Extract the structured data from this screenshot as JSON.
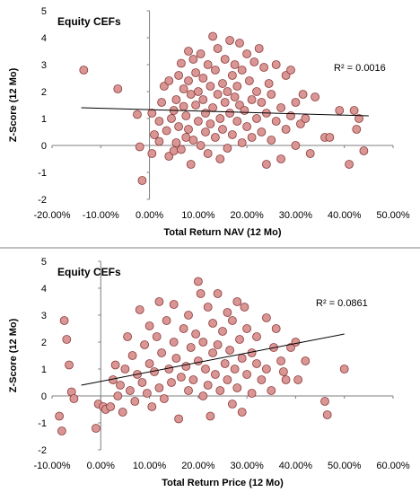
{
  "chart_data": [
    {
      "type": "scatter",
      "title": "Equity CEFs",
      "xlabel": "Total Return NAV (12 Mo)",
      "ylabel": "Z-Score (12 Mo)",
      "xlim": [
        -0.2,
        0.5
      ],
      "ylim": [
        -2,
        5
      ],
      "x_tick_labels": [
        "-20.00%",
        "-10.00%",
        "0.00%",
        "10.00%",
        "20.00%",
        "30.00%",
        "40.00%",
        "50.00%"
      ],
      "y_tick_labels": [
        "-2",
        "-1",
        "0",
        "1",
        "2",
        "3",
        "4",
        "5"
      ],
      "grid": false,
      "r_squared_label": "R² = 0.0016",
      "trendline": {
        "x": [
          -0.14,
          0.45
        ],
        "y": [
          1.4,
          1.1
        ]
      },
      "points": [
        {
          "x": -0.135,
          "y": 2.8
        },
        {
          "x": -0.065,
          "y": 2.1
        },
        {
          "x": -0.025,
          "y": 1.15
        },
        {
          "x": -0.02,
          "y": -0.05
        },
        {
          "x": -0.015,
          "y": -1.3
        },
        {
          "x": 0.005,
          "y": 1.2
        },
        {
          "x": 0.005,
          "y": -0.3
        },
        {
          "x": 0.01,
          "y": 0.4
        },
        {
          "x": 0.02,
          "y": 0.15
        },
        {
          "x": 0.02,
          "y": 0.9
        },
        {
          "x": 0.025,
          "y": 1.6
        },
        {
          "x": 0.03,
          "y": 2.2
        },
        {
          "x": 0.035,
          "y": 0.55
        },
        {
          "x": 0.04,
          "y": -0.4
        },
        {
          "x": 0.04,
          "y": 2.4
        },
        {
          "x": 0.045,
          "y": 1.0
        },
        {
          "x": 0.05,
          "y": 1.3
        },
        {
          "x": 0.05,
          "y": -0.2
        },
        {
          "x": 0.055,
          "y": 0.1
        },
        {
          "x": 0.055,
          "y": 1.7
        },
        {
          "x": 0.06,
          "y": 2.6
        },
        {
          "x": 0.06,
          "y": 0.7
        },
        {
          "x": 0.065,
          "y": 3.05
        },
        {
          "x": 0.065,
          "y": -0.15
        },
        {
          "x": 0.07,
          "y": 1.45
        },
        {
          "x": 0.07,
          "y": 2.1
        },
        {
          "x": 0.075,
          "y": 0.3
        },
        {
          "x": 0.075,
          "y": 1.1
        },
        {
          "x": 0.08,
          "y": 3.5
        },
        {
          "x": 0.08,
          "y": 0.6
        },
        {
          "x": 0.08,
          "y": 2.4
        },
        {
          "x": 0.085,
          "y": 1.9
        },
        {
          "x": 0.085,
          "y": -0.7
        },
        {
          "x": 0.09,
          "y": 3.2
        },
        {
          "x": 0.09,
          "y": 0.2
        },
        {
          "x": 0.095,
          "y": 1.5
        },
        {
          "x": 0.095,
          "y": 2.7
        },
        {
          "x": 0.1,
          "y": 0.9
        },
        {
          "x": 0.1,
          "y": 2.0
        },
        {
          "x": 0.105,
          "y": 3.4
        },
        {
          "x": 0.105,
          "y": 0.0
        },
        {
          "x": 0.11,
          "y": 1.7
        },
        {
          "x": 0.11,
          "y": 2.5
        },
        {
          "x": 0.115,
          "y": 0.5
        },
        {
          "x": 0.115,
          "y": 1.2
        },
        {
          "x": 0.12,
          "y": 3.0
        },
        {
          "x": 0.12,
          "y": -0.3
        },
        {
          "x": 0.125,
          "y": 2.2
        },
        {
          "x": 0.125,
          "y": 0.8
        },
        {
          "x": 0.13,
          "y": 4.05
        },
        {
          "x": 0.13,
          "y": 1.4
        },
        {
          "x": 0.135,
          "y": 2.8
        },
        {
          "x": 0.135,
          "y": 0.3
        },
        {
          "x": 0.14,
          "y": 1.9
        },
        {
          "x": 0.14,
          "y": 3.6
        },
        {
          "x": 0.145,
          "y": 1.0
        },
        {
          "x": 0.145,
          "y": -0.5
        },
        {
          "x": 0.15,
          "y": 2.3
        },
        {
          "x": 0.15,
          "y": 0.6
        },
        {
          "x": 0.155,
          "y": 3.2
        },
        {
          "x": 0.155,
          "y": 1.6
        },
        {
          "x": 0.16,
          "y": 2.0
        },
        {
          "x": 0.16,
          "y": -0.1
        },
        {
          "x": 0.165,
          "y": 3.9
        },
        {
          "x": 0.165,
          "y": 1.2
        },
        {
          "x": 0.17,
          "y": 2.6
        },
        {
          "x": 0.17,
          "y": 0.4
        },
        {
          "x": 0.175,
          "y": 1.8
        },
        {
          "x": 0.175,
          "y": 3.0
        },
        {
          "x": 0.18,
          "y": 0.9
        },
        {
          "x": 0.18,
          "y": 2.2
        },
        {
          "x": 0.185,
          "y": 1.5
        },
        {
          "x": 0.185,
          "y": 3.8
        },
        {
          "x": 0.19,
          "y": 0.1
        },
        {
          "x": 0.19,
          "y": 2.8
        },
        {
          "x": 0.195,
          "y": 1.3
        },
        {
          "x": 0.2,
          "y": 3.4
        },
        {
          "x": 0.2,
          "y": 0.7
        },
        {
          "x": 0.205,
          "y": 2.4
        },
        {
          "x": 0.21,
          "y": 1.7
        },
        {
          "x": 0.21,
          "y": 0.3
        },
        {
          "x": 0.215,
          "y": 3.1
        },
        {
          "x": 0.22,
          "y": 1.0
        },
        {
          "x": 0.22,
          "y": 2.0
        },
        {
          "x": 0.225,
          "y": 3.6
        },
        {
          "x": 0.23,
          "y": 0.5
        },
        {
          "x": 0.23,
          "y": 1.6
        },
        {
          "x": 0.235,
          "y": 2.9
        },
        {
          "x": 0.24,
          "y": -0.7
        },
        {
          "x": 0.24,
          "y": 1.2
        },
        {
          "x": 0.245,
          "y": 2.3
        },
        {
          "x": 0.25,
          "y": 0.2
        },
        {
          "x": 0.25,
          "y": 1.9
        },
        {
          "x": 0.26,
          "y": 0.9
        },
        {
          "x": 0.26,
          "y": 3.0
        },
        {
          "x": 0.27,
          "y": 1.4
        },
        {
          "x": 0.27,
          "y": -0.5
        },
        {
          "x": 0.28,
          "y": 2.6
        },
        {
          "x": 0.28,
          "y": 0.6
        },
        {
          "x": 0.29,
          "y": 1.1
        },
        {
          "x": 0.29,
          "y": 2.8
        },
        {
          "x": 0.3,
          "y": 0.0
        },
        {
          "x": 0.3,
          "y": 1.6
        },
        {
          "x": 0.31,
          "y": 0.8
        },
        {
          "x": 0.315,
          "y": 1.9
        },
        {
          "x": 0.32,
          "y": 1.0
        },
        {
          "x": 0.33,
          "y": -0.3
        },
        {
          "x": 0.34,
          "y": 1.8
        },
        {
          "x": 0.36,
          "y": 0.3
        },
        {
          "x": 0.37,
          "y": 0.3
        },
        {
          "x": 0.39,
          "y": 1.3
        },
        {
          "x": 0.41,
          "y": -0.7
        },
        {
          "x": 0.42,
          "y": 1.3
        },
        {
          "x": 0.425,
          "y": 0.6
        },
        {
          "x": 0.43,
          "y": 1.0
        },
        {
          "x": 0.44,
          "y": -0.2
        }
      ]
    },
    {
      "type": "scatter",
      "title": "Equity CEFs",
      "xlabel": "Total Return Price (12 Mo)",
      "ylabel": "Z-Score (12 Mo)",
      "xlim": [
        -0.1,
        0.6
      ],
      "ylim": [
        -2,
        5
      ],
      "x_tick_labels": [
        "-10.00%",
        "0.00%",
        "10.00%",
        "20.00%",
        "30.00%",
        "40.00%",
        "50.00%",
        "60.00%"
      ],
      "y_tick_labels": [
        "-2",
        "-1",
        "0",
        "1",
        "2",
        "3",
        "4",
        "5"
      ],
      "grid": false,
      "r_squared_label": "R² = 0.0861",
      "trendline": {
        "x": [
          -0.04,
          0.5
        ],
        "y": [
          0.4,
          2.3
        ]
      },
      "points": [
        {
          "x": -0.085,
          "y": -0.75
        },
        {
          "x": -0.08,
          "y": -1.3
        },
        {
          "x": -0.075,
          "y": 2.8
        },
        {
          "x": -0.07,
          "y": 2.1
        },
        {
          "x": -0.065,
          "y": 1.15
        },
        {
          "x": -0.06,
          "y": 0.15
        },
        {
          "x": -0.055,
          "y": -0.1
        },
        {
          "x": -0.01,
          "y": -1.2
        },
        {
          "x": -0.005,
          "y": -0.3
        },
        {
          "x": 0.005,
          "y": -0.4
        },
        {
          "x": 0.01,
          "y": -0.5
        },
        {
          "x": 0.02,
          "y": -0.4
        },
        {
          "x": 0.025,
          "y": 0.6
        },
        {
          "x": 0.03,
          "y": 1.15
        },
        {
          "x": 0.035,
          "y": 0.0
        },
        {
          "x": 0.04,
          "y": 0.4
        },
        {
          "x": 0.045,
          "y": -0.6
        },
        {
          "x": 0.05,
          "y": 1.0
        },
        {
          "x": 0.055,
          "y": 2.2
        },
        {
          "x": 0.06,
          "y": 0.2
        },
        {
          "x": 0.065,
          "y": 1.5
        },
        {
          "x": 0.07,
          "y": -0.2
        },
        {
          "x": 0.075,
          "y": 0.8
        },
        {
          "x": 0.08,
          "y": 3.2
        },
        {
          "x": 0.085,
          "y": 0.5
        },
        {
          "x": 0.09,
          "y": 1.9
        },
        {
          "x": 0.095,
          "y": 0.1
        },
        {
          "x": 0.1,
          "y": 2.6
        },
        {
          "x": 0.1,
          "y": 1.2
        },
        {
          "x": 0.105,
          "y": -0.4
        },
        {
          "x": 0.11,
          "y": 0.9
        },
        {
          "x": 0.115,
          "y": 2.2
        },
        {
          "x": 0.12,
          "y": 3.5
        },
        {
          "x": 0.12,
          "y": 0.3
        },
        {
          "x": 0.125,
          "y": 1.6
        },
        {
          "x": 0.13,
          "y": -0.1
        },
        {
          "x": 0.135,
          "y": 2.8
        },
        {
          "x": 0.14,
          "y": 1.0
        },
        {
          "x": 0.145,
          "y": 0.5
        },
        {
          "x": 0.15,
          "y": 2.0
        },
        {
          "x": 0.15,
          "y": 3.4
        },
        {
          "x": 0.155,
          "y": 1.4
        },
        {
          "x": 0.16,
          "y": -0.85
        },
        {
          "x": 0.165,
          "y": 0.7
        },
        {
          "x": 0.17,
          "y": 2.5
        },
        {
          "x": 0.175,
          "y": 1.1
        },
        {
          "x": 0.18,
          "y": 0.2
        },
        {
          "x": 0.18,
          "y": 3.0
        },
        {
          "x": 0.185,
          "y": 1.8
        },
        {
          "x": 0.19,
          "y": 0.6
        },
        {
          "x": 0.195,
          "y": 2.3
        },
        {
          "x": 0.2,
          "y": 4.25
        },
        {
          "x": 0.2,
          "y": 1.3
        },
        {
          "x": 0.205,
          "y": 3.8
        },
        {
          "x": 0.21,
          "y": 0.0
        },
        {
          "x": 0.21,
          "y": 2.0
        },
        {
          "x": 0.215,
          "y": 1.0
        },
        {
          "x": 0.22,
          "y": 3.3
        },
        {
          "x": 0.22,
          "y": 0.4
        },
        {
          "x": 0.225,
          "y": -0.75
        },
        {
          "x": 0.23,
          "y": 1.6
        },
        {
          "x": 0.23,
          "y": 2.7
        },
        {
          "x": 0.235,
          "y": 0.8
        },
        {
          "x": 0.24,
          "y": 3.8
        },
        {
          "x": 0.24,
          "y": 1.9
        },
        {
          "x": 0.245,
          "y": 0.2
        },
        {
          "x": 0.25,
          "y": 2.4
        },
        {
          "x": 0.255,
          "y": 1.2
        },
        {
          "x": 0.26,
          "y": 3.1
        },
        {
          "x": 0.26,
          "y": 0.6
        },
        {
          "x": 0.265,
          "y": 1.7
        },
        {
          "x": 0.27,
          "y": -0.3
        },
        {
          "x": 0.27,
          "y": 2.8
        },
        {
          "x": 0.275,
          "y": 1.0
        },
        {
          "x": 0.28,
          "y": 3.5
        },
        {
          "x": 0.28,
          "y": 0.3
        },
        {
          "x": 0.285,
          "y": 2.1
        },
        {
          "x": 0.29,
          "y": 1.4
        },
        {
          "x": 0.29,
          "y": -0.6
        },
        {
          "x": 0.295,
          "y": 3.3
        },
        {
          "x": 0.3,
          "y": 0.8
        },
        {
          "x": 0.3,
          "y": 2.5
        },
        {
          "x": 0.31,
          "y": 1.6
        },
        {
          "x": 0.31,
          "y": 0.1
        },
        {
          "x": 0.32,
          "y": 1.2
        },
        {
          "x": 0.32,
          "y": 2.2
        },
        {
          "x": 0.33,
          "y": 0.6
        },
        {
          "x": 0.34,
          "y": 2.9
        },
        {
          "x": 0.34,
          "y": 1.0
        },
        {
          "x": 0.35,
          "y": 0.2
        },
        {
          "x": 0.355,
          "y": 1.8
        },
        {
          "x": 0.36,
          "y": 2.5
        },
        {
          "x": 0.37,
          "y": 1.3
        },
        {
          "x": 0.375,
          "y": 0.9
        },
        {
          "x": 0.38,
          "y": 0.6
        },
        {
          "x": 0.39,
          "y": 1.8
        },
        {
          "x": 0.4,
          "y": 2.0
        },
        {
          "x": 0.405,
          "y": 0.6
        },
        {
          "x": 0.42,
          "y": 1.3
        },
        {
          "x": 0.46,
          "y": -0.2
        },
        {
          "x": 0.465,
          "y": -0.7
        },
        {
          "x": 0.5,
          "y": 1.0
        }
      ]
    }
  ]
}
